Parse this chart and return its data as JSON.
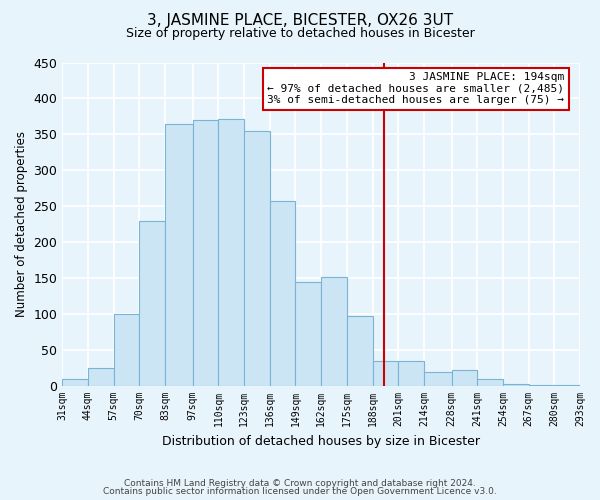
{
  "title": "3, JASMINE PLACE, BICESTER, OX26 3UT",
  "subtitle": "Size of property relative to detached houses in Bicester",
  "xlabel": "Distribution of detached houses by size in Bicester",
  "ylabel": "Number of detached properties",
  "bar_left_edges": [
    31,
    44,
    57,
    70,
    83,
    97,
    110,
    123,
    136,
    149,
    162,
    175,
    188,
    201,
    214,
    228,
    241,
    254,
    267,
    280
  ],
  "bar_heights": [
    10,
    25,
    100,
    230,
    365,
    370,
    372,
    355,
    258,
    145,
    152,
    97,
    35,
    35,
    20,
    22,
    10,
    3,
    1,
    1
  ],
  "bar_widths": [
    13,
    13,
    13,
    13,
    14,
    13,
    13,
    13,
    13,
    13,
    13,
    13,
    13,
    13,
    14,
    13,
    13,
    13,
    13,
    13
  ],
  "tick_labels": [
    "31sqm",
    "44sqm",
    "57sqm",
    "70sqm",
    "83sqm",
    "97sqm",
    "110sqm",
    "123sqm",
    "136sqm",
    "149sqm",
    "162sqm",
    "175sqm",
    "188sqm",
    "201sqm",
    "214sqm",
    "228sqm",
    "241sqm",
    "254sqm",
    "267sqm",
    "280sqm",
    "293sqm"
  ],
  "tick_positions": [
    31,
    44,
    57,
    70,
    83,
    97,
    110,
    123,
    136,
    149,
    162,
    175,
    188,
    201,
    214,
    228,
    241,
    254,
    267,
    280,
    293
  ],
  "bar_color": "#cce5f5",
  "bar_edge_color": "#7ab4d4",
  "vline_x": 194,
  "vline_color": "#cc0000",
  "ylim": [
    0,
    450
  ],
  "xlim": [
    31,
    293
  ],
  "annotation_title": "3 JASMINE PLACE: 194sqm",
  "annotation_line1": "← 97% of detached houses are smaller (2,485)",
  "annotation_line2": "3% of semi-detached houses are larger (75) →",
  "footnote1": "Contains HM Land Registry data © Crown copyright and database right 2024.",
  "footnote2": "Contains public sector information licensed under the Open Government Licence v3.0.",
  "background_color": "#e8f4fb",
  "grid_color": "#ffffff"
}
